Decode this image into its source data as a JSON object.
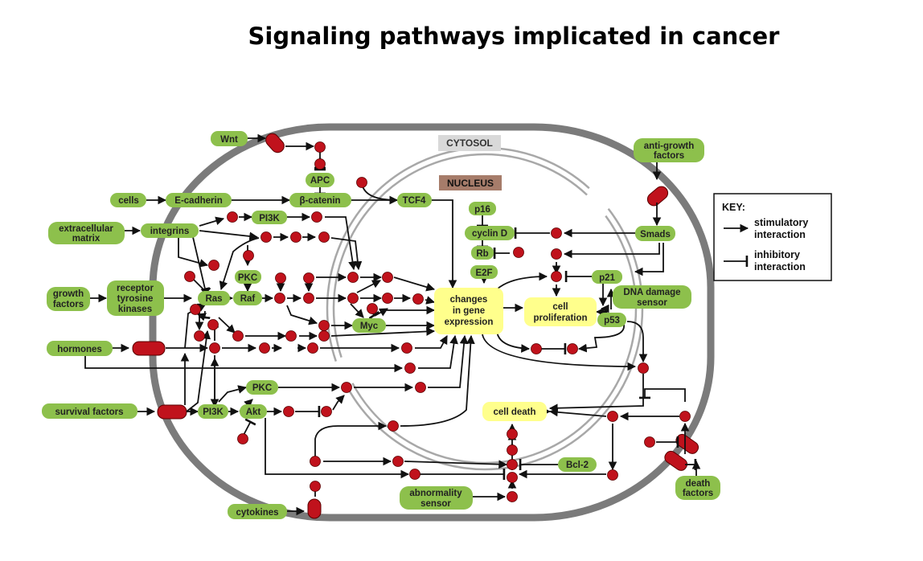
{
  "title": "Signaling pathways implicated in cancer",
  "compartments": {
    "cytosol": "CYTOSOL",
    "nucleus": "NUCLEUS"
  },
  "key": {
    "heading": "KEY:",
    "stimulatory": [
      "stimulatory",
      "interaction"
    ],
    "inhibitory": [
      "inhibitory",
      "interaction"
    ]
  },
  "nodes": {
    "wnt": [
      "Wnt"
    ],
    "cells": [
      "cells"
    ],
    "ecadherin": [
      "E-cadherin"
    ],
    "extracellular_matrix": [
      "extracellular",
      "matrix"
    ],
    "integrins": [
      "integrins"
    ],
    "growth_factors": [
      "growth",
      "factors"
    ],
    "rtk": [
      "receptor",
      "tyrosine",
      "kinases"
    ],
    "hormones": [
      "hormones"
    ],
    "survival_factors": [
      "survival factors"
    ],
    "cytokines": [
      "cytokines"
    ],
    "apc": [
      "APC"
    ],
    "bcatenin": [
      "β-catenin"
    ],
    "tcf4": [
      "TCF4"
    ],
    "pi3k_top": [
      "PI3K"
    ],
    "pkc_top": [
      "PKC"
    ],
    "ras": [
      "Ras"
    ],
    "raf": [
      "Raf"
    ],
    "myc": [
      "Myc"
    ],
    "pkc_bottom": [
      "PKC"
    ],
    "pi3k_bottom": [
      "PI3K"
    ],
    "akt": [
      "Akt"
    ],
    "p16": [
      "p16"
    ],
    "cyclin_d": [
      "cyclin D"
    ],
    "rb": [
      "Rb"
    ],
    "e2f": [
      "E2F"
    ],
    "changes_gene_expression": [
      "changes",
      "in gene",
      "expression"
    ],
    "cell_proliferation": [
      "cell",
      "proliferation"
    ],
    "cell_death": [
      "cell death"
    ],
    "anti_growth_factors": [
      "anti-growth",
      "factors"
    ],
    "smads": [
      "Smads"
    ],
    "p21": [
      "p21"
    ],
    "dna_damage_sensor": [
      "DNA damage",
      "sensor"
    ],
    "p53": [
      "p53"
    ],
    "bcl2": [
      "Bcl-2"
    ],
    "abnormality_sensor": [
      "abnormality",
      "sensor"
    ],
    "death_factors": [
      "death",
      "factors"
    ]
  },
  "colors": {
    "green": "#8dc04c",
    "yellow": "#ffff8c",
    "red": "#c0121c",
    "membrane": "#7b7b7b",
    "nucleus_membrane": "#a8a8a8",
    "cytosol_label_bg": "#d9d9d9",
    "nucleus_label_bg": "#a67c6a"
  }
}
